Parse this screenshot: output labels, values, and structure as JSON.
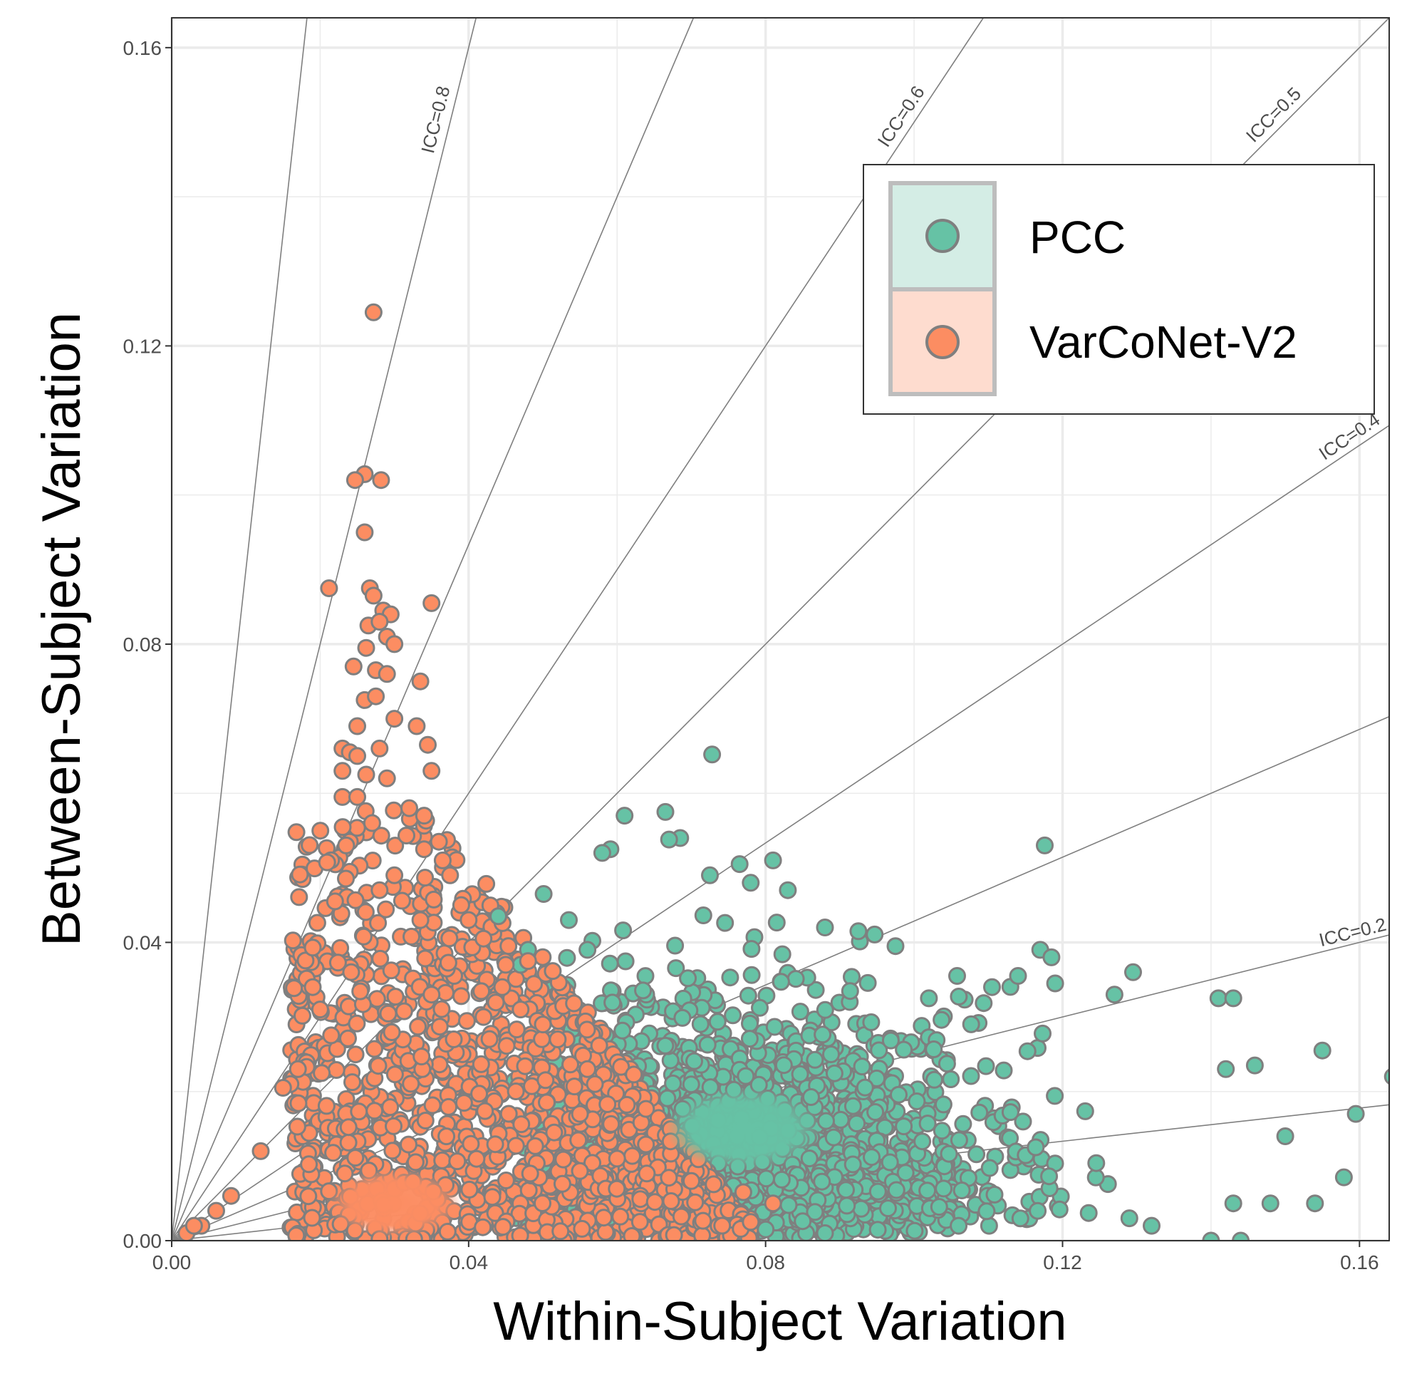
{
  "chart_data": {
    "type": "scatter",
    "xlabel": "Within-Subject Variation",
    "ylabel": "Between-Subject Variation",
    "xlim": [
      0,
      0.164
    ],
    "ylim": [
      0,
      0.164
    ],
    "x_ticks": [
      "0.00",
      "0.04",
      "0.08",
      "0.12",
      "0.16"
    ],
    "y_ticks": [
      "0.00",
      "0.04",
      "0.08",
      "0.12",
      "0.16"
    ],
    "grid": true,
    "legend_position": "top-right",
    "icc_lines": [
      {
        "icc": 0.9,
        "label": ""
      },
      {
        "icc": 0.8,
        "label": "ICC=0.8"
      },
      {
        "icc": 0.7,
        "label": ""
      },
      {
        "icc": 0.6,
        "label": "ICC=0.6"
      },
      {
        "icc": 0.5,
        "label": "ICC=0.5"
      },
      {
        "icc": 0.4,
        "label": "ICC=0.4"
      },
      {
        "icc": 0.3,
        "label": ""
      },
      {
        "icc": 0.2,
        "label": "ICC=0.2"
      },
      {
        "icc": 0.1,
        "label": ""
      }
    ],
    "series": [
      {
        "name": "PCC",
        "color": "#66c2a5",
        "cluster": {
          "x_range": [
            0.04,
            0.165
          ],
          "y_range": [
            0,
            0.066
          ],
          "center": [
            0.077,
            0.015
          ]
        },
        "points": [
          [
            0.0728,
            0.0652
          ],
          [
            0.0665,
            0.0575
          ],
          [
            0.061,
            0.057
          ],
          [
            0.0685,
            0.054
          ],
          [
            0.067,
            0.0538
          ],
          [
            0.0591,
            0.0525
          ],
          [
            0.058,
            0.052
          ],
          [
            0.1176,
            0.053
          ],
          [
            0.081,
            0.051
          ],
          [
            0.0765,
            0.0505
          ],
          [
            0.0725,
            0.049
          ],
          [
            0.078,
            0.048
          ],
          [
            0.0501,
            0.0465
          ],
          [
            0.083,
            0.047
          ],
          [
            0.088,
            0.042
          ],
          [
            0.0925,
            0.0415
          ],
          [
            0.117,
            0.039
          ],
          [
            0.1185,
            0.038
          ],
          [
            0.0975,
            0.0395
          ],
          [
            0.1295,
            0.036
          ],
          [
            0.114,
            0.0355
          ],
          [
            0.1105,
            0.034
          ],
          [
            0.1058,
            0.0355
          ],
          [
            0.119,
            0.0345
          ],
          [
            0.127,
            0.033
          ],
          [
            0.141,
            0.0325
          ],
          [
            0.143,
            0.0325
          ],
          [
            0.102,
            0.0325
          ],
          [
            0.155,
            0.0255
          ],
          [
            0.1459,
            0.0235
          ],
          [
            0.142,
            0.023
          ],
          [
            0.1645,
            0.022
          ],
          [
            0.1595,
            0.017
          ],
          [
            0.1579,
            0.0085
          ],
          [
            0.154,
            0.005
          ],
          [
            0.143,
            0.005
          ],
          [
            0.148,
            0.005
          ],
          [
            0.144,
            0.0
          ],
          [
            0.14,
            0.0
          ],
          [
            0.129,
            0.003
          ],
          [
            0.132,
            0.002
          ],
          [
            0.106,
            0.002
          ],
          [
            0.088,
            0.001
          ],
          [
            0.08,
            0.0015
          ],
          [
            0.0535,
            0.043
          ],
          [
            0.044,
            0.0435
          ],
          [
            0.048,
            0.039
          ],
          [
            0.047,
            0.037
          ],
          [
            0.056,
            0.039
          ],
          [
            0.15,
            0.014
          ]
        ]
      },
      {
        "name": "VarCoNet-V2",
        "color": "#fc8d62",
        "cluster": {
          "x_range": [
            0,
            0.08
          ],
          "y_range": [
            0,
            0.125
          ],
          "center": [
            0.03,
            0.005
          ]
        },
        "points": [
          [
            0.0272,
            0.1245
          ],
          [
            0.026,
            0.1028
          ],
          [
            0.0247,
            0.102
          ],
          [
            0.0282,
            0.102
          ],
          [
            0.026,
            0.095
          ],
          [
            0.0212,
            0.0875
          ],
          [
            0.0267,
            0.0875
          ],
          [
            0.0272,
            0.0865
          ],
          [
            0.035,
            0.0855
          ],
          [
            0.0285,
            0.0845
          ],
          [
            0.0295,
            0.084
          ],
          [
            0.0265,
            0.0825
          ],
          [
            0.028,
            0.083
          ],
          [
            0.029,
            0.081
          ],
          [
            0.03,
            0.08
          ],
          [
            0.0262,
            0.0795
          ],
          [
            0.0245,
            0.077
          ],
          [
            0.0275,
            0.0765
          ],
          [
            0.029,
            0.076
          ],
          [
            0.0335,
            0.075
          ],
          [
            0.026,
            0.0725
          ],
          [
            0.0275,
            0.073
          ],
          [
            0.025,
            0.069
          ],
          [
            0.03,
            0.07
          ],
          [
            0.033,
            0.069
          ],
          [
            0.023,
            0.066
          ],
          [
            0.024,
            0.0655
          ],
          [
            0.025,
            0.065
          ],
          [
            0.028,
            0.066
          ],
          [
            0.0345,
            0.0665
          ],
          [
            0.023,
            0.063
          ],
          [
            0.0262,
            0.0625
          ],
          [
            0.029,
            0.062
          ],
          [
            0.035,
            0.063
          ],
          [
            0.023,
            0.0595
          ],
          [
            0.025,
            0.0595
          ],
          [
            0.032,
            0.058
          ],
          [
            0.034,
            0.057
          ],
          [
            0.027,
            0.056
          ],
          [
            0.036,
            0.0535
          ],
          [
            0.0235,
            0.053
          ],
          [
            0.034,
            0.0525
          ],
          [
            0.0365,
            0.051
          ],
          [
            0.03,
            0.049
          ],
          [
            0.0375,
            0.049
          ],
          [
            0.028,
            0.047
          ],
          [
            0.022,
            0.0455
          ],
          [
            0.039,
            0.045
          ],
          [
            0.0335,
            0.043
          ],
          [
            0.04,
            0.043
          ],
          [
            0.042,
            0.0405
          ],
          [
            0.019,
            0.0393
          ],
          [
            0.045,
            0.037
          ],
          [
            0.048,
            0.0375
          ],
          [
            0.019,
            0.034
          ],
          [
            0.02,
            0.031
          ],
          [
            0.056,
            0.023
          ],
          [
            0.057,
            0.021
          ],
          [
            0.055,
            0.017
          ],
          [
            0.06,
            0.011
          ],
          [
            0.064,
            0.009
          ],
          [
            0.07,
            0.008
          ],
          [
            0.077,
            0.0065
          ],
          [
            0.081,
            0.005
          ],
          [
            0.078,
            0.0025
          ],
          [
            0.016,
            0.021
          ],
          [
            0.015,
            0.0205
          ],
          [
            0.017,
            0.023
          ],
          [
            0.012,
            0.012
          ],
          [
            0.008,
            0.006
          ],
          [
            0.006,
            0.004
          ],
          [
            0.004,
            0.002
          ],
          [
            0.002,
            0.001
          ],
          [
            0.003,
            0.002
          ],
          [
            0.047,
            0.031
          ],
          [
            0.05,
            0.029
          ],
          [
            0.052,
            0.027
          ],
          [
            0.042,
            0.03
          ],
          [
            0.038,
            0.027
          ],
          [
            0.035,
            0.033
          ]
        ]
      }
    ]
  }
}
